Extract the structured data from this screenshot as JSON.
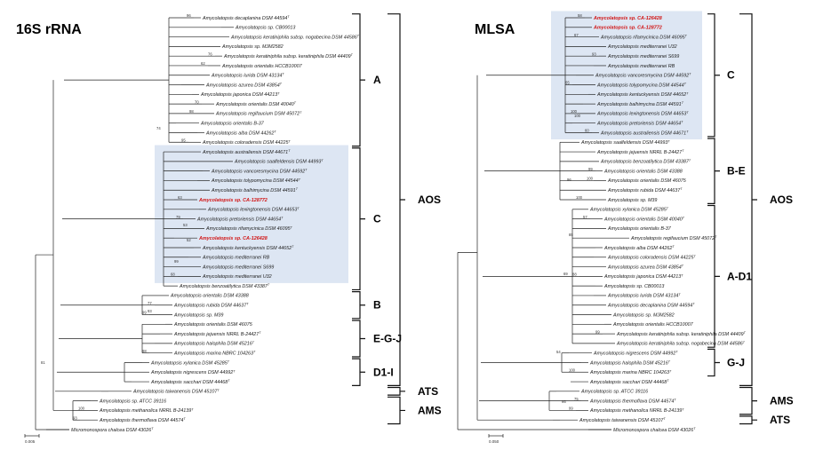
{
  "panels": [
    {
      "id": "left",
      "title": "16S rRNA",
      "scale_label": "0.005",
      "highlight_colors": {
        "box": "#dde6f3",
        "red": "#d11313"
      },
      "leaves": [
        {
          "t": "Amycolatopsis decaplanina DSM 44594",
          "sup": "T",
          "b": "96"
        },
        {
          "t": "Amycolatopsis sp. CB00013"
        },
        {
          "t": "Amycolatopsis keratiniphila subsp. nogabecina DSM 44586",
          "sup": "T"
        },
        {
          "t": "Amycolatopsis sp. MJM2582"
        },
        {
          "t": "Amycolatopsis keratiniphila subsp. keratiniphila DSM 44409",
          "sup": "T",
          "b": "76"
        },
        {
          "t": "Amycolatopsis orientalis HCCB10007",
          "b": "62"
        },
        {
          "t": "Amycolatopsis lurida DSM 43134",
          "sup": "T"
        },
        {
          "t": "Amycolatopsis azurea DSM 43854",
          "sup": "T"
        },
        {
          "t": "Amycolatopsis japonica DSM 44213",
          "sup": "T"
        },
        {
          "t": "Amycolatopsis orientalis DSM 40040",
          "sup": "T",
          "b": "70"
        },
        {
          "t": "Amycolatopsis regifaucium DSM 45072",
          "sup": "T",
          "b": "98"
        },
        {
          "t": "Amycolatopsis orientalis B-37"
        },
        {
          "t": "Amycolatopsis alba DSM 44262",
          "sup": "T"
        },
        {
          "t": "Amycolatopsis coloradensis DSM 44225",
          "sup": "T",
          "b": "95"
        },
        {
          "t": "Amycolatopsis australiensis DSM 44671",
          "sup": "T"
        },
        {
          "t": "Amycolatopsis saalfeldensis DSM 44993",
          "sup": "T"
        },
        {
          "t": "Amycolatopsis vancoresmycina DSM 44592",
          "sup": "T"
        },
        {
          "t": "Amycolatopsis tolypomycina DSM 44544",
          "sup": "T"
        },
        {
          "t": "Amycolatopsis balhimycina DSM 44591",
          "sup": "T"
        },
        {
          "t": "Amycolatopsis sp. CA-128772",
          "hl": true
        },
        {
          "t": "Amycolatopsis lexingtonensis DSM 44653",
          "sup": "T"
        },
        {
          "t": "Amycolatopsis pretoriensis DSM 44654",
          "sup": "T",
          "b": "79"
        },
        {
          "t": "Amycolatopsis rifamycinica DSM 46095",
          "sup": "T"
        },
        {
          "t": "Amycolatopsis sp. CA-126428",
          "hl": true
        },
        {
          "t": "Amycolatopsis kentuckyensis DSM 44652",
          "sup": "T"
        },
        {
          "t": "Amycolatopsis mediterranei RB"
        },
        {
          "t": "Amycolatopsis mediterranei S699"
        },
        {
          "t": "Amycolatopsis mediterranei U32",
          "b": "68"
        },
        {
          "t": "Amycolatopsis benzoatilytica DSM 43387",
          "sup": "T"
        },
        {
          "t": "Amycolatopsis orientalis DSM 43388"
        },
        {
          "t": "Amycolatopsis rubida DSM 44637",
          "sup": "T",
          "b": "77"
        },
        {
          "t": "Amycolatopsis sp. M39",
          "b": "99"
        },
        {
          "t": "Amycolatopsis orientalis DSM 46075"
        },
        {
          "t": "Amycolatopsis jejuensis NRRL B-24427",
          "sup": "T"
        },
        {
          "t": "Amycolatopsis halophila DSM 45216",
          "sup": "T"
        },
        {
          "t": "Amycolatopsis marina NBRC 104263",
          "sup": "T",
          "b": "68"
        },
        {
          "t": "Amycolatopsis xylanica DSM 45285",
          "sup": "T"
        },
        {
          "t": "Amycolatopsis nigrescens DSM 44992",
          "sup": "T"
        },
        {
          "t": "Amycolatopsis sacchari DSM 44468",
          "sup": "T"
        },
        {
          "t": "Amycolatopsis taiwanensis DSM 45107",
          "sup": "T"
        },
        {
          "t": "Amycolatopsis sp. ATCC 39116"
        },
        {
          "t": "Amycolatopsis methanolica NRRL B-24139",
          "sup": "T",
          "b": "100"
        },
        {
          "t": "Amycolatopsis thermoflava DSM 44574",
          "sup": "T",
          "b": "93"
        },
        {
          "t": "Micromonospora chalcea DSM 43026",
          "sup": "T"
        }
      ],
      "inner_bootstrap": [
        "74",
        "63",
        "53",
        "52",
        "93",
        "81",
        "99"
      ],
      "groups": [
        {
          "label": "A",
          "from": 0,
          "to": 13
        },
        {
          "label": "C",
          "from": 14,
          "to": 28
        },
        {
          "label": "B",
          "from": 29,
          "to": 31
        },
        {
          "label": "E-G-J",
          "from": 32,
          "to": 35
        },
        {
          "label": "D1-I",
          "from": 36,
          "to": 38
        }
      ],
      "outer": [
        {
          "label": "AOS",
          "from": 0,
          "to": 38
        },
        {
          "label": "ATS",
          "from": 39,
          "to": 39
        },
        {
          "label": "AMS",
          "from": 40,
          "to": 42
        }
      ],
      "box": {
        "from": 14,
        "to": 27
      }
    },
    {
      "id": "right",
      "title": "MLSA",
      "scale_label": "0.050",
      "leaves": [
        {
          "t": "Amycolatopsis sp. CA-126428",
          "hl": true,
          "b": "58"
        },
        {
          "t": "Amycolatopsis sp. CA-128772",
          "hl": true
        },
        {
          "t": "Amycolatopsis rifamycinica DSM 46095",
          "sup": "T",
          "b": "67"
        },
        {
          "t": "Amycolatopsis mediterranei U32"
        },
        {
          "t": "Amycolatopsis mediterranei S699",
          "b": "93"
        },
        {
          "t": "Amycolatopsis mediterranei RB"
        },
        {
          "t": "Amycolatopsis vancoresmycina DSM 44592",
          "sup": "T"
        },
        {
          "t": "Amycolatopsis tolypomycina DSM 44544",
          "sup": "T",
          "b": "65"
        },
        {
          "t": "Amycolatopsis kentuckyensis DSM 44652",
          "sup": "T"
        },
        {
          "t": "Amycolatopsis balhimycina DSM 44591",
          "sup": "T"
        },
        {
          "t": "Amycolatopsis lexingtonensis DSM 44653",
          "sup": "T",
          "b": "100"
        },
        {
          "t": "Amycolatopsis pretoriensis DSM 44654",
          "sup": "T"
        },
        {
          "t": "Amycolatopsis australiensis DSM 44671",
          "sup": "T",
          "b": "60"
        },
        {
          "t": "Amycolatopsis saalfeldensis DSM 44993",
          "sup": "T"
        },
        {
          "t": "Amycolatopsis jejuensis NRRL B-24427",
          "sup": "T"
        },
        {
          "t": "Amycolatopsis benzoatilytica DSM 43387",
          "sup": "T"
        },
        {
          "t": "Amycolatopsis orientalis DSM 43388",
          "b": "99"
        },
        {
          "t": "Amycolatopsis orientalis DSM 46075",
          "b": "100"
        },
        {
          "t": "Amycolatopsis rubida DSM 44637",
          "sup": "T"
        },
        {
          "t": "Amycolatopsis sp. M39",
          "b": "100"
        },
        {
          "t": "Amycolatopsis xylanica DSM 45285",
          "sup": "T"
        },
        {
          "t": "Amycolatopsis orientalis DSM 40040",
          "sup": "T",
          "b": "57"
        },
        {
          "t": "Amycolatopsis orientalis B-37"
        },
        {
          "t": "Amycolatopsis regifaucium DSM 45072",
          "sup": "T"
        },
        {
          "t": "Amycolatopsis alba DSM 44262",
          "sup": "T"
        },
        {
          "t": "Amycolatopsis coloradensis DSM 44225",
          "sup": "T"
        },
        {
          "t": "Amycolatopsis azurea DSM 43854",
          "sup": "T"
        },
        {
          "t": "Amycolatopsis japonica DSM 44213",
          "sup": "T",
          "b": "88"
        },
        {
          "t": "Amycolatopsis sp. CB00013"
        },
        {
          "t": "Amycolatopsis lurida DSM 43134",
          "sup": "T"
        },
        {
          "t": "Amycolatopsis decaplanina DSM 44594",
          "sup": "T"
        },
        {
          "t": "Amycolatopsis sp. MJM2582"
        },
        {
          "t": "Amycolatopsis orientalis HCCB10007"
        },
        {
          "t": "Amycolatopsis keratiniphila subsp. keratiniphila DSM 44409",
          "sup": "T",
          "b": "99"
        },
        {
          "t": "Amycolatopsis keratiniphila subsp. nogabecina DSM 44586",
          "sup": "T"
        },
        {
          "t": "Amycolatopsis nigrescens DSM 44992",
          "sup": "T"
        },
        {
          "t": "Amycolatopsis halophila DSM 45216",
          "sup": "T"
        },
        {
          "t": "Amycolatopsis marina NBRC 104263",
          "sup": "T",
          "b": "100"
        },
        {
          "t": "Amycolatopsis sacchari DSM 44468",
          "sup": "T"
        },
        {
          "t": "Amycolatopsis sp. ATCC 39116"
        },
        {
          "t": "Amycolatopsis thermoflava DSM 44574",
          "sup": "T",
          "b": "75"
        },
        {
          "t": "Amycolatopsis methanolica NRRL B-24139",
          "sup": "T",
          "b": "99"
        },
        {
          "t": "Amycolatopsis taiwanensis DSM 45107",
          "sup": "T"
        },
        {
          "t": "Micromonospora chalcea DSM 43026",
          "sup": "T"
        }
      ],
      "inner_bootstrap": [
        "100",
        "96",
        "85",
        "69",
        "54",
        "95"
      ],
      "groups": [
        {
          "label": "C",
          "from": 0,
          "to": 12
        },
        {
          "label": "B-E",
          "from": 13,
          "to": 19
        },
        {
          "label": "A-D1",
          "from": 20,
          "to": 34
        },
        {
          "label": "G-J",
          "from": 35,
          "to": 37
        }
      ],
      "outer": [
        {
          "label": "AOS",
          "from": 0,
          "to": 38
        },
        {
          "label": "AMS",
          "from": 39,
          "to": 41
        },
        {
          "label": "ATS",
          "from": 42,
          "to": 42
        }
      ],
      "box": {
        "from": 0,
        "to": 12
      }
    }
  ]
}
